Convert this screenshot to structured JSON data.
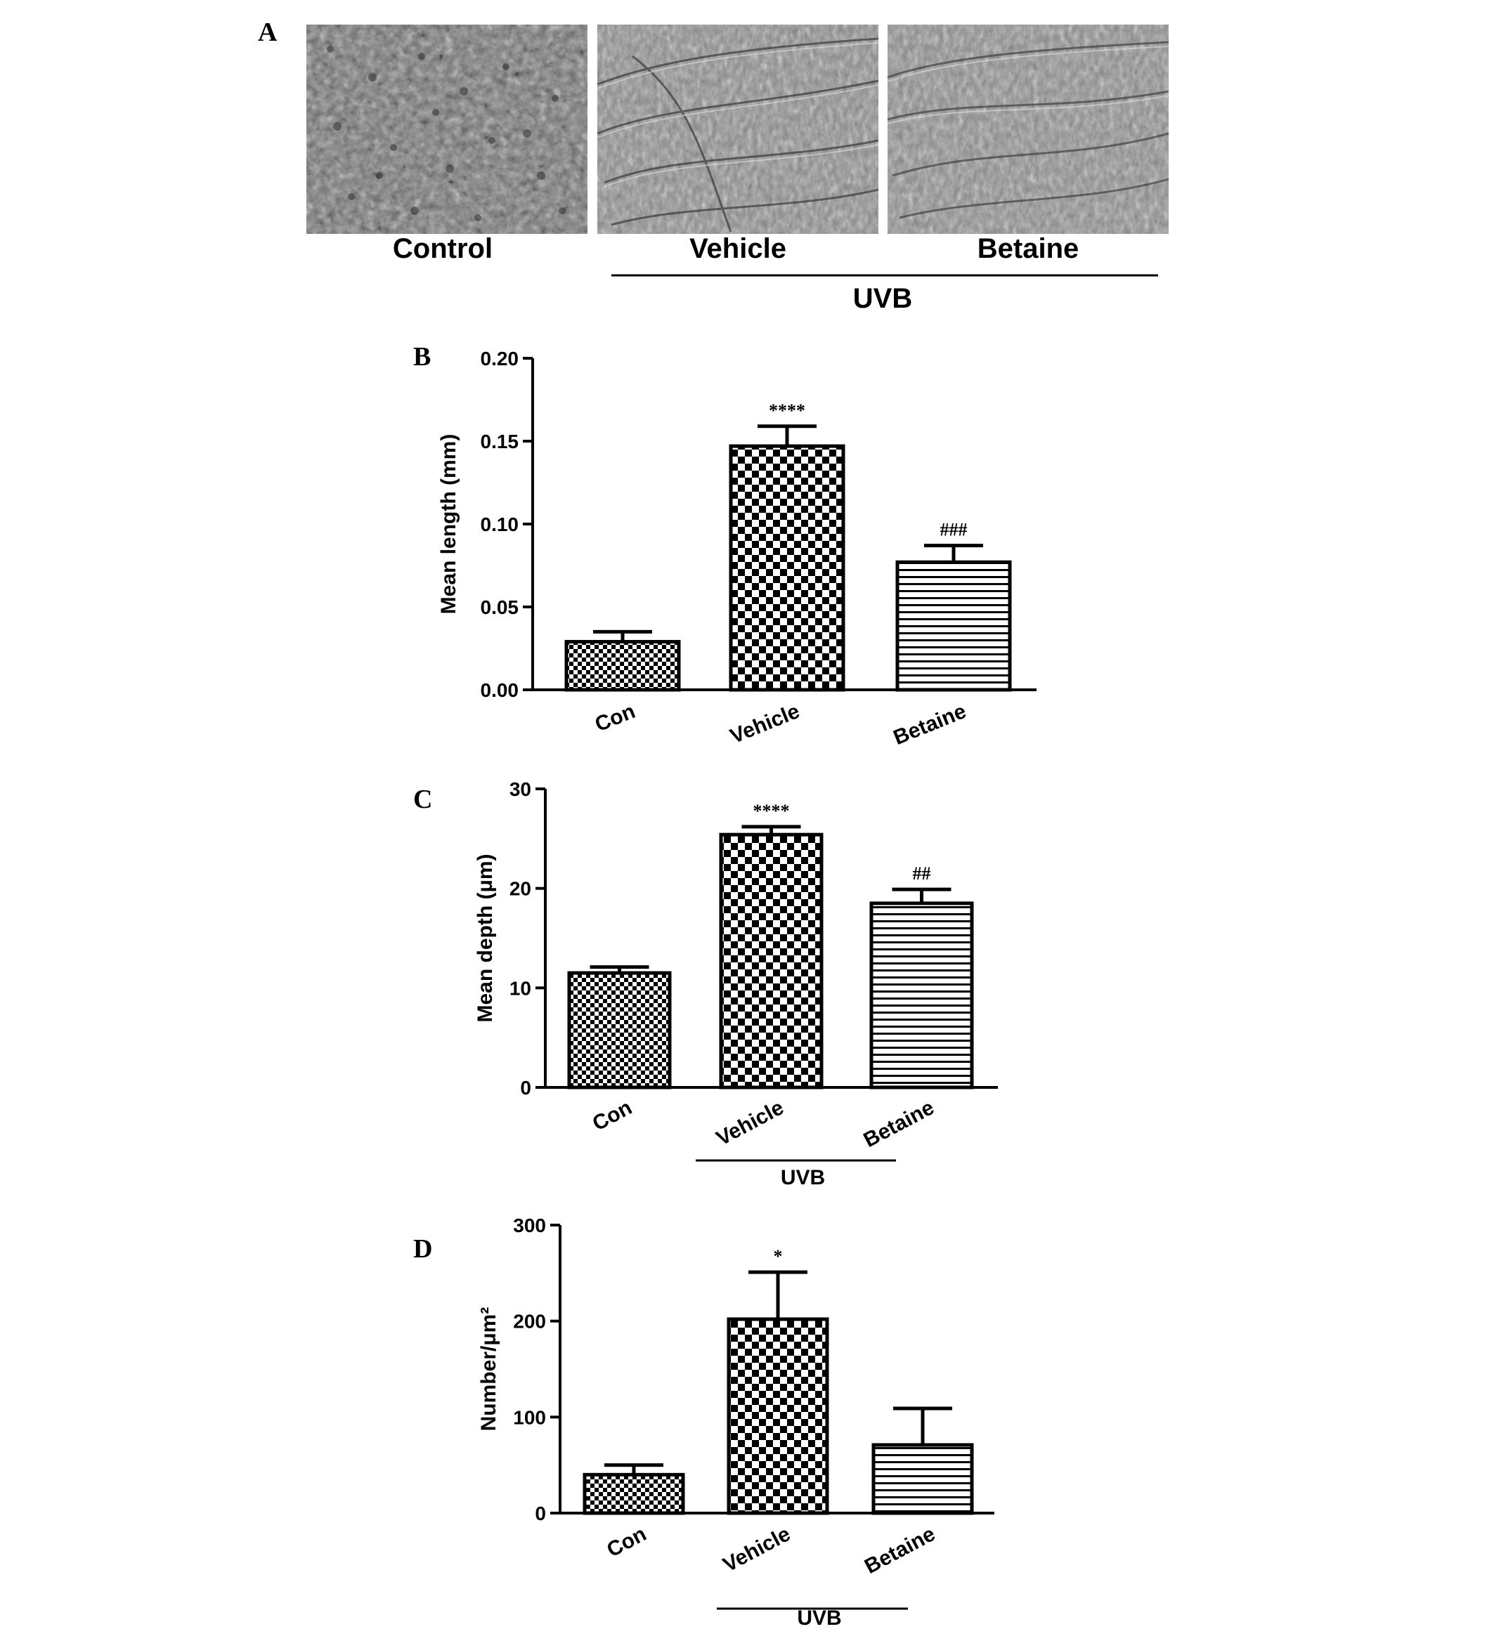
{
  "panel_a": {
    "label": "A",
    "captions": [
      "Control",
      "Vehicle",
      "Betaine"
    ],
    "group_label": "UVB"
  },
  "chart_data": [
    {
      "panel": "B",
      "type": "bar",
      "categories": [
        "Con",
        "Vehicle",
        "Betaine"
      ],
      "values": [
        0.029,
        0.147,
        0.077
      ],
      "errors": [
        0.006,
        0.012,
        0.01
      ],
      "significance": [
        "",
        "****",
        "###"
      ],
      "ylabel": "Mean length (mm)",
      "ylim": [
        0,
        0.2
      ],
      "yticks": [
        "0.00",
        "0.05",
        "0.10",
        "0.15",
        "0.20"
      ],
      "group_label": "",
      "patterns": [
        "fine-check",
        "coarse-check",
        "hstripe"
      ]
    },
    {
      "panel": "C",
      "type": "bar",
      "categories": [
        "Con",
        "Vehicle",
        "Betaine"
      ],
      "values": [
        11.5,
        25.4,
        18.5
      ],
      "errors": [
        0.6,
        0.8,
        1.4
      ],
      "significance": [
        "",
        "****",
        "##"
      ],
      "ylabel": "Mean depth (μm)",
      "ylim": [
        0,
        30
      ],
      "yticks": [
        "0",
        "10",
        "20",
        "30"
      ],
      "group_label": "UVB",
      "patterns": [
        "fine-check",
        "coarse-check",
        "hstripe"
      ]
    },
    {
      "panel": "D",
      "type": "bar",
      "categories": [
        "Con",
        "Vehicle",
        "Betaine"
      ],
      "values": [
        40,
        202,
        71
      ],
      "errors": [
        10,
        49,
        38
      ],
      "significance": [
        "",
        "*",
        ""
      ],
      "ylabel": "Number/μm²",
      "ylim": [
        0,
        300
      ],
      "yticks": [
        "0",
        "100",
        "200",
        "300"
      ],
      "group_label": "UVB",
      "patterns": [
        "fine-check",
        "coarse-check",
        "hstripe"
      ]
    }
  ],
  "colors": {
    "ink": "#000000",
    "background": "#ffffff",
    "photo_mid": "#808080"
  }
}
